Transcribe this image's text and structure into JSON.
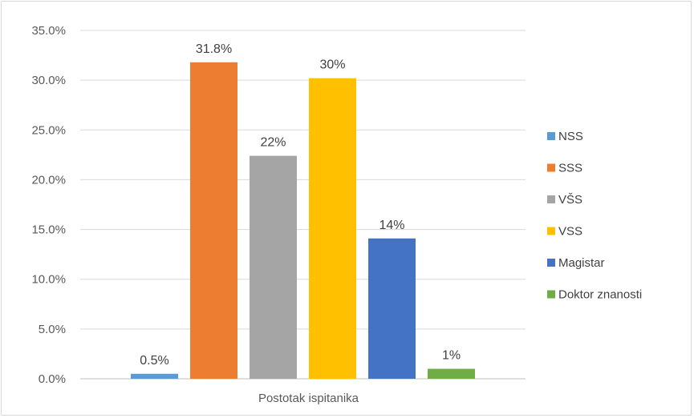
{
  "chart_data": {
    "type": "bar",
    "title": "",
    "xlabel": "Postotak ispitanika",
    "ylabel": "",
    "ylim": [
      0,
      35
    ],
    "yticks": [
      "0.0%",
      "5.0%",
      "10.0%",
      "15.0%",
      "20.0%",
      "25.0%",
      "30.0%",
      "35.0%"
    ],
    "grid": true,
    "legend_position": "right",
    "series": [
      {
        "name": "NSS",
        "value": 0.5,
        "label": "0.5%",
        "color": "#5b9bd5"
      },
      {
        "name": "SSS",
        "value": 31.8,
        "label": "31.8%",
        "color": "#ed7d31"
      },
      {
        "name": "VŠS",
        "value": 22.4,
        "label": "22%",
        "color": "#a5a5a5"
      },
      {
        "name": "VSS",
        "value": 30.2,
        "label": "30%",
        "color": "#ffc000"
      },
      {
        "name": "Magistar",
        "value": 14.1,
        "label": "14%",
        "color": "#4472c4"
      },
      {
        "name": "Doktor znanosti",
        "value": 1.0,
        "label": "1%",
        "color": "#70ad47"
      }
    ]
  }
}
